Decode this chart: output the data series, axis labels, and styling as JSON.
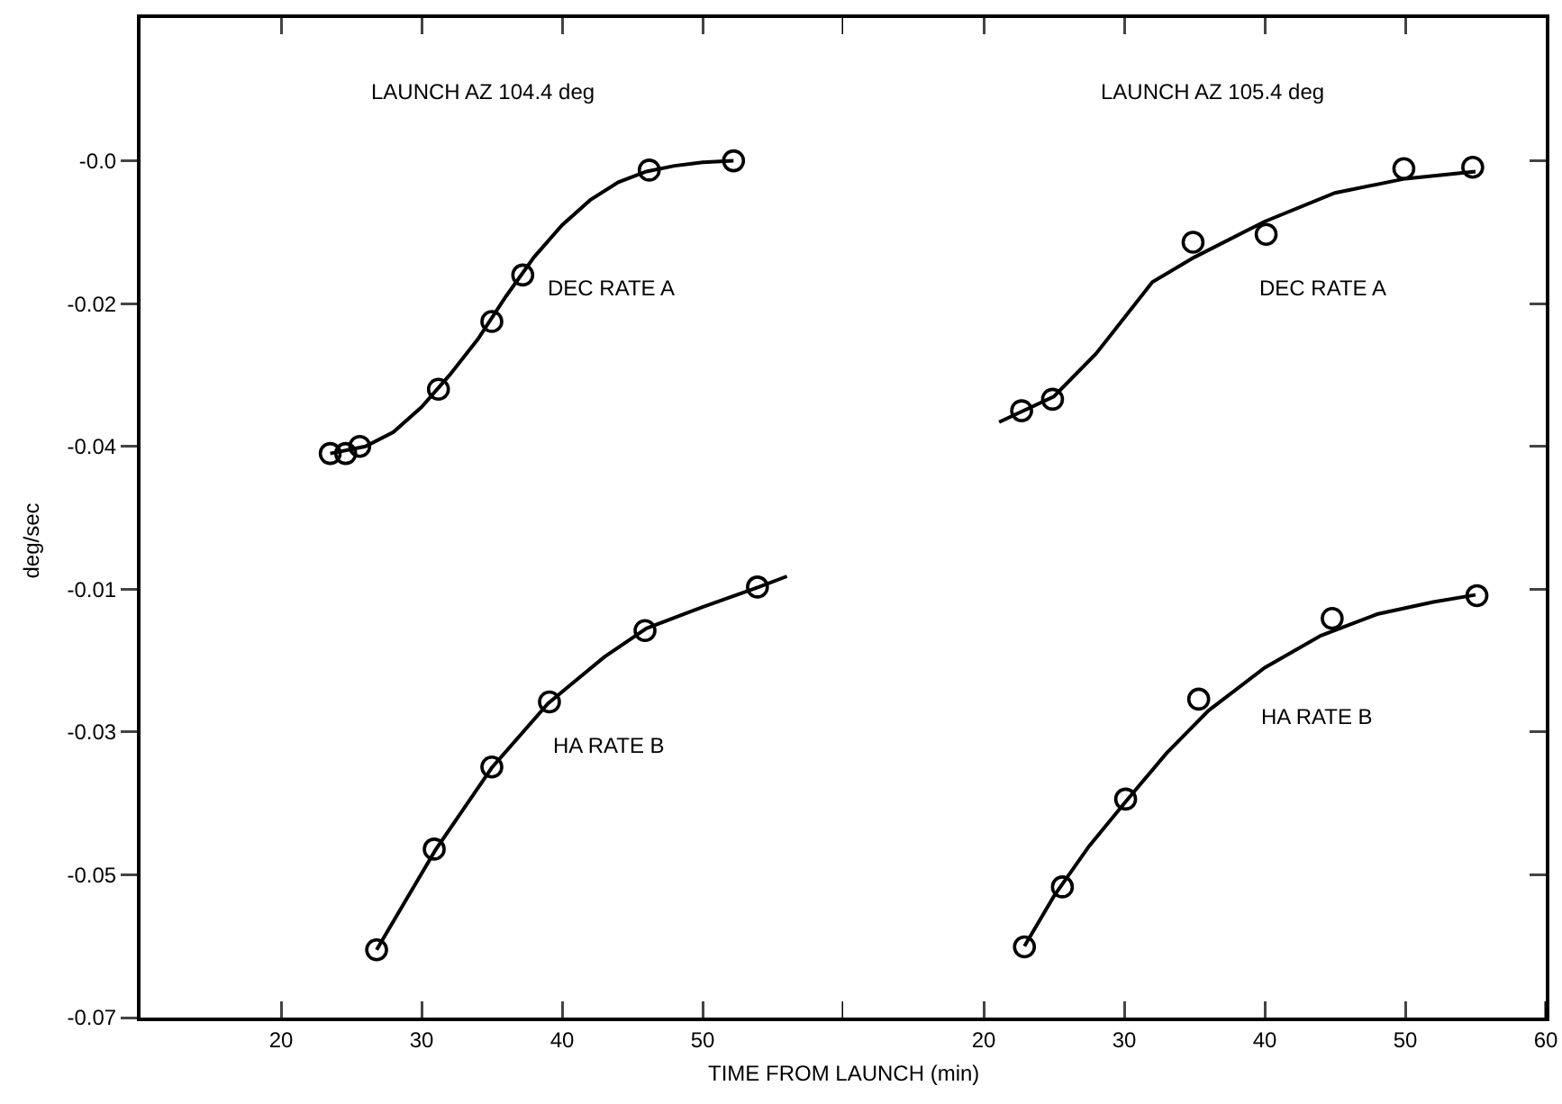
{
  "chart_data": [
    {
      "type": "line",
      "title": "LAUNCH AZ 104.4 deg",
      "xlim": [
        10,
        60
      ],
      "ylim": [
        -0.053,
        0.02
      ],
      "xticks": [
        {
          "value": 20,
          "label": null
        },
        {
          "value": 30,
          "label": null
        },
        {
          "value": 40,
          "label": null
        },
        {
          "value": 50,
          "label": null
        },
        {
          "value": 60,
          "label": null
        }
      ],
      "yticks": [
        {
          "value": 0,
          "label": "-0.0"
        },
        -0.02,
        -0.04
      ],
      "tick_labels": "y",
      "grid": false,
      "legend": false,
      "series": [
        {
          "name": "DEC RATE A",
          "type": "scatter",
          "marker": "circle",
          "color": "#000000",
          "x": [
            23.5,
            24.6,
            25.6,
            31.2,
            35.0,
            37.2,
            46.2,
            52.2
          ],
          "values": [
            -0.041,
            -0.041,
            -0.04,
            -0.032,
            -0.0225,
            -0.016,
            -0.0013,
            0.0
          ]
        },
        {
          "type": "line",
          "marker": "none",
          "line_style": "solid",
          "color": "#000000",
          "x": [
            23.5,
            26,
            28,
            30,
            32,
            34,
            36,
            38,
            40,
            42,
            44,
            46,
            48,
            50,
            52.2
          ],
          "values": [
            -0.041,
            -0.04,
            -0.038,
            -0.0345,
            -0.03,
            -0.025,
            -0.019,
            -0.0135,
            -0.009,
            -0.0055,
            -0.003,
            -0.0015,
            -0.0007,
            -0.0002,
            0.0
          ]
        }
      ]
    },
    {
      "type": "line",
      "title": "LAUNCH AZ 105.4 deg",
      "xlim": [
        10,
        60
      ],
      "ylim": [
        -0.053,
        0.02
      ],
      "xticks": [
        {
          "value": 20,
          "label": null
        },
        {
          "value": 30,
          "label": null
        },
        {
          "value": 40,
          "label": null
        },
        {
          "value": 50,
          "label": null
        }
      ],
      "yticks": [
        {
          "value": 0,
          "label": null
        },
        {
          "value": -0.02,
          "label": null
        },
        {
          "value": -0.04,
          "label": null
        }
      ],
      "tick_labels": false,
      "grid": false,
      "legend": false,
      "series": [
        {
          "name": "DEC RATE A",
          "type": "scatter",
          "marker": "circle",
          "color": "#000000",
          "x": [
            22.7,
            24.9,
            34.9,
            40.1,
            49.9,
            54.8
          ],
          "values": [
            -0.035,
            -0.0334,
            -0.0114,
            -0.0103,
            -0.0011,
            -0.0009
          ]
        },
        {
          "type": "line",
          "marker": "none",
          "line_style": "solid",
          "color": "#000000",
          "x": [
            21.1,
            25,
            28,
            30,
            32,
            35,
            40,
            45,
            50,
            55
          ],
          "values": [
            -0.0366,
            -0.033,
            -0.027,
            -0.022,
            -0.017,
            -0.0135,
            -0.0085,
            -0.0045,
            -0.0025,
            -0.0015
          ]
        }
      ]
    },
    {
      "type": "line",
      "xlabel": "TIME FROM LAUNCH (min)",
      "ylabel": "deg/sec",
      "xlim": [
        10,
        60
      ],
      "ylim": [
        -0.07,
        -0.003
      ],
      "xticks": [
        20,
        30,
        40,
        50,
        {
          "value": 60,
          "label": null
        }
      ],
      "yticks": [
        -0.01,
        -0.03,
        -0.05,
        -0.07
      ],
      "grid": false,
      "legend": false,
      "series": [
        {
          "name": "HA RATE B",
          "type": "scatter",
          "marker": "circle",
          "color": "#000000",
          "x": [
            26.8,
            30.9,
            35.0,
            39.1,
            45.9,
            53.9
          ],
          "values": [
            -0.0605,
            -0.0464,
            -0.0349,
            -0.0258,
            -0.0158,
            -0.0097
          ]
        },
        {
          "type": "line",
          "marker": "none",
          "line_style": "solid",
          "color": "#000000",
          "x": [
            26.8,
            31,
            35,
            39,
            43,
            46,
            50,
            54,
            56
          ],
          "values": [
            -0.0605,
            -0.0465,
            -0.035,
            -0.026,
            -0.0195,
            -0.0155,
            -0.0125,
            -0.0097,
            -0.0082
          ]
        }
      ]
    },
    {
      "type": "line",
      "xlim": [
        10,
        60
      ],
      "ylim": [
        -0.07,
        -0.003
      ],
      "xticks": [
        20,
        30,
        40,
        50,
        60
      ],
      "yticks": [
        {
          "value": -0.01,
          "label": null
        },
        {
          "value": -0.03,
          "label": null
        },
        {
          "value": -0.05,
          "label": null
        },
        {
          "value": -0.07,
          "label": null
        }
      ],
      "tick_labels": "x",
      "grid": false,
      "legend": false,
      "series": [
        {
          "name": "HA RATE B",
          "type": "scatter",
          "marker": "circle",
          "color": "#000000",
          "x": [
            22.9,
            25.6,
            30.1,
            35.3,
            44.8,
            55.1
          ],
          "values": [
            -0.0601,
            -0.0517,
            -0.0394,
            -0.0254,
            -0.0141,
            -0.0109
          ]
        },
        {
          "type": "line",
          "marker": "none",
          "line_style": "solid",
          "color": "#000000",
          "x": [
            22.9,
            25,
            27.5,
            30,
            33,
            36,
            40,
            44,
            48,
            52,
            55
          ],
          "values": [
            -0.06,
            -0.053,
            -0.046,
            -0.04,
            -0.033,
            -0.027,
            -0.021,
            -0.0165,
            -0.0135,
            -0.0118,
            -0.0108
          ]
        }
      ]
    }
  ]
}
